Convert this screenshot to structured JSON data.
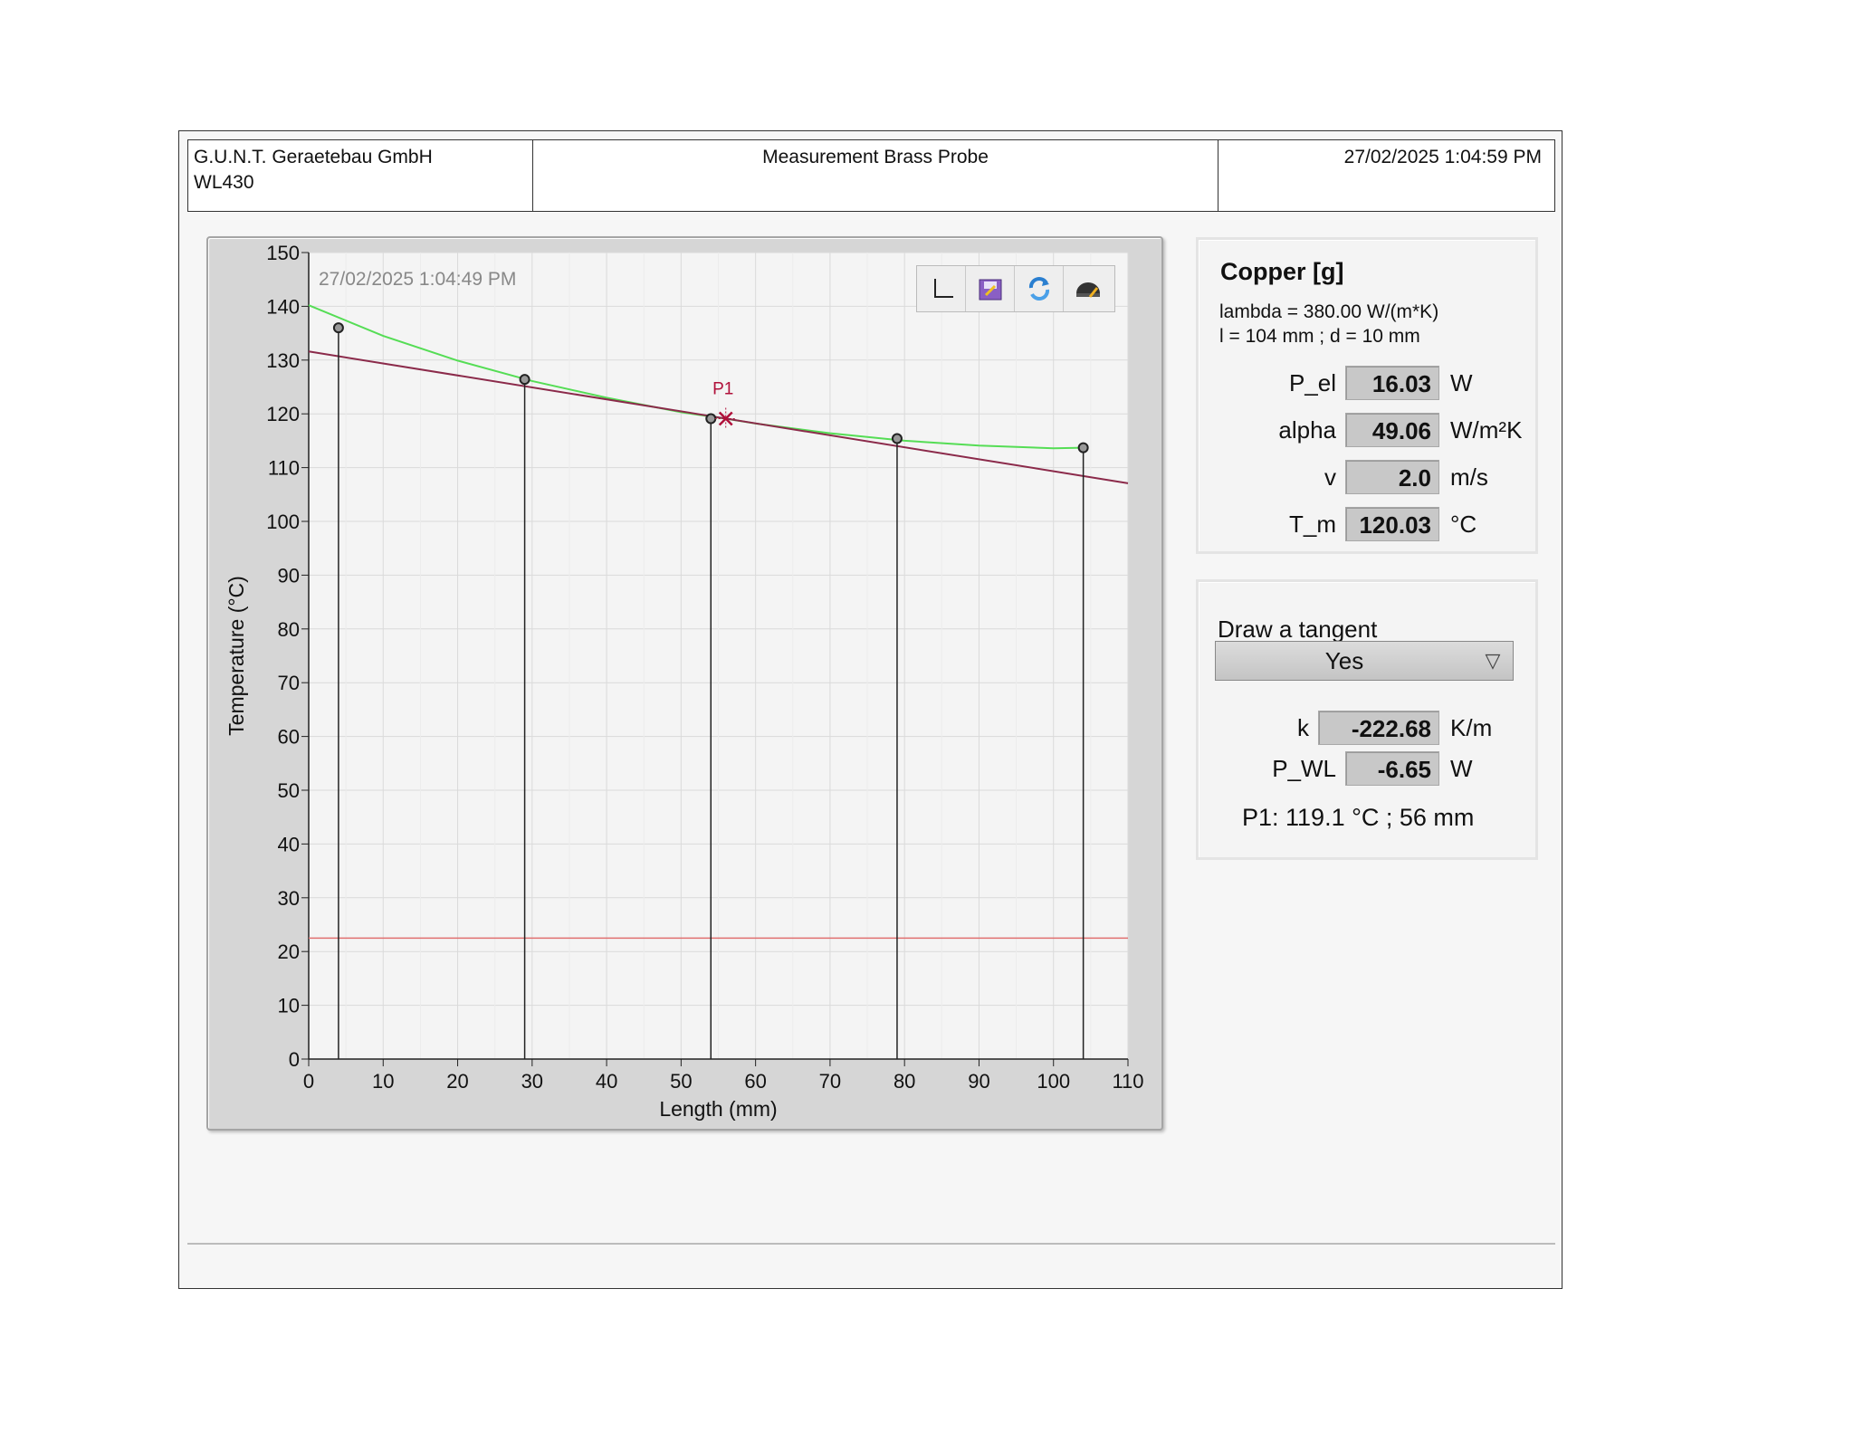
{
  "header": {
    "company": "G.U.N.T. Geraetebau GmbH",
    "model": "WL430",
    "title": "Measurement Brass Probe",
    "datetime": "27/02/2025  1:04:59 PM"
  },
  "graph": {
    "timestamp": "27/02/2025    1:04:49 PM",
    "tools": [
      {
        "name": "cursor-tool-icon"
      },
      {
        "name": "save-graph-icon"
      },
      {
        "name": "refresh-icon"
      },
      {
        "name": "print-icon"
      }
    ]
  },
  "chart_data": {
    "type": "scatter",
    "xlabel": "Length (mm)",
    "ylabel": "Temperature (°C)",
    "xlim": [
      0,
      110
    ],
    "ylim": [
      0,
      150
    ],
    "xticks": [
      0,
      10,
      20,
      30,
      40,
      50,
      60,
      70,
      80,
      90,
      100,
      110
    ],
    "yticks": [
      0,
      10,
      20,
      30,
      40,
      50,
      60,
      70,
      80,
      90,
      100,
      110,
      120,
      130,
      140,
      150
    ],
    "grid": true,
    "series": [
      {
        "kind": "points",
        "color": "#222222",
        "x": [
          4,
          29,
          54,
          79,
          104
        ],
        "y": [
          136,
          126.4,
          119.1,
          115.4,
          113.7
        ]
      },
      {
        "kind": "fit",
        "color": "#55dd55",
        "x": [
          0,
          10,
          20,
          30,
          40,
          50,
          56,
          60,
          70,
          80,
          90,
          100,
          104
        ],
        "y": [
          140.2,
          134.5,
          129.9,
          126.1,
          123,
          120.3,
          119.1,
          118.2,
          116.4,
          115,
          114.1,
          113.6,
          113.7
        ]
      },
      {
        "kind": "tangent",
        "color": "#8b2a4a",
        "x": [
          0,
          110
        ],
        "y": [
          131.6,
          107.1
        ]
      },
      {
        "kind": "ambient",
        "color": "#e07070",
        "x": [
          0,
          110
        ],
        "y": [
          22.5,
          22.5
        ]
      }
    ],
    "cursor": {
      "label": "P1",
      "x": 56,
      "y": 119.1,
      "color": "#b0103a"
    }
  },
  "probe": {
    "material": "Copper [g]",
    "lambda": "lambda = 380.00 W/(m*K)",
    "geometry": "l = 104 mm ; d = 10 mm",
    "rows": [
      {
        "label": "P_el",
        "value": "16.03",
        "unit": "W"
      },
      {
        "label": "alpha",
        "value": "49.06",
        "unit": "W/m²K"
      },
      {
        "label": "v",
        "value": "2.0",
        "unit": "m/s"
      },
      {
        "label": "T_m",
        "value": "120.03",
        "unit": "°C"
      }
    ]
  },
  "tangent": {
    "label": "Draw a tangent",
    "selected": "Yes",
    "rows": [
      {
        "label": "k",
        "value": "-222.68",
        "unit": "K/m"
      },
      {
        "label": "P_WL",
        "value": "-6.65",
        "unit": "W"
      }
    ],
    "cursor_text": "P1: 119.1 °C ; 56 mm"
  }
}
